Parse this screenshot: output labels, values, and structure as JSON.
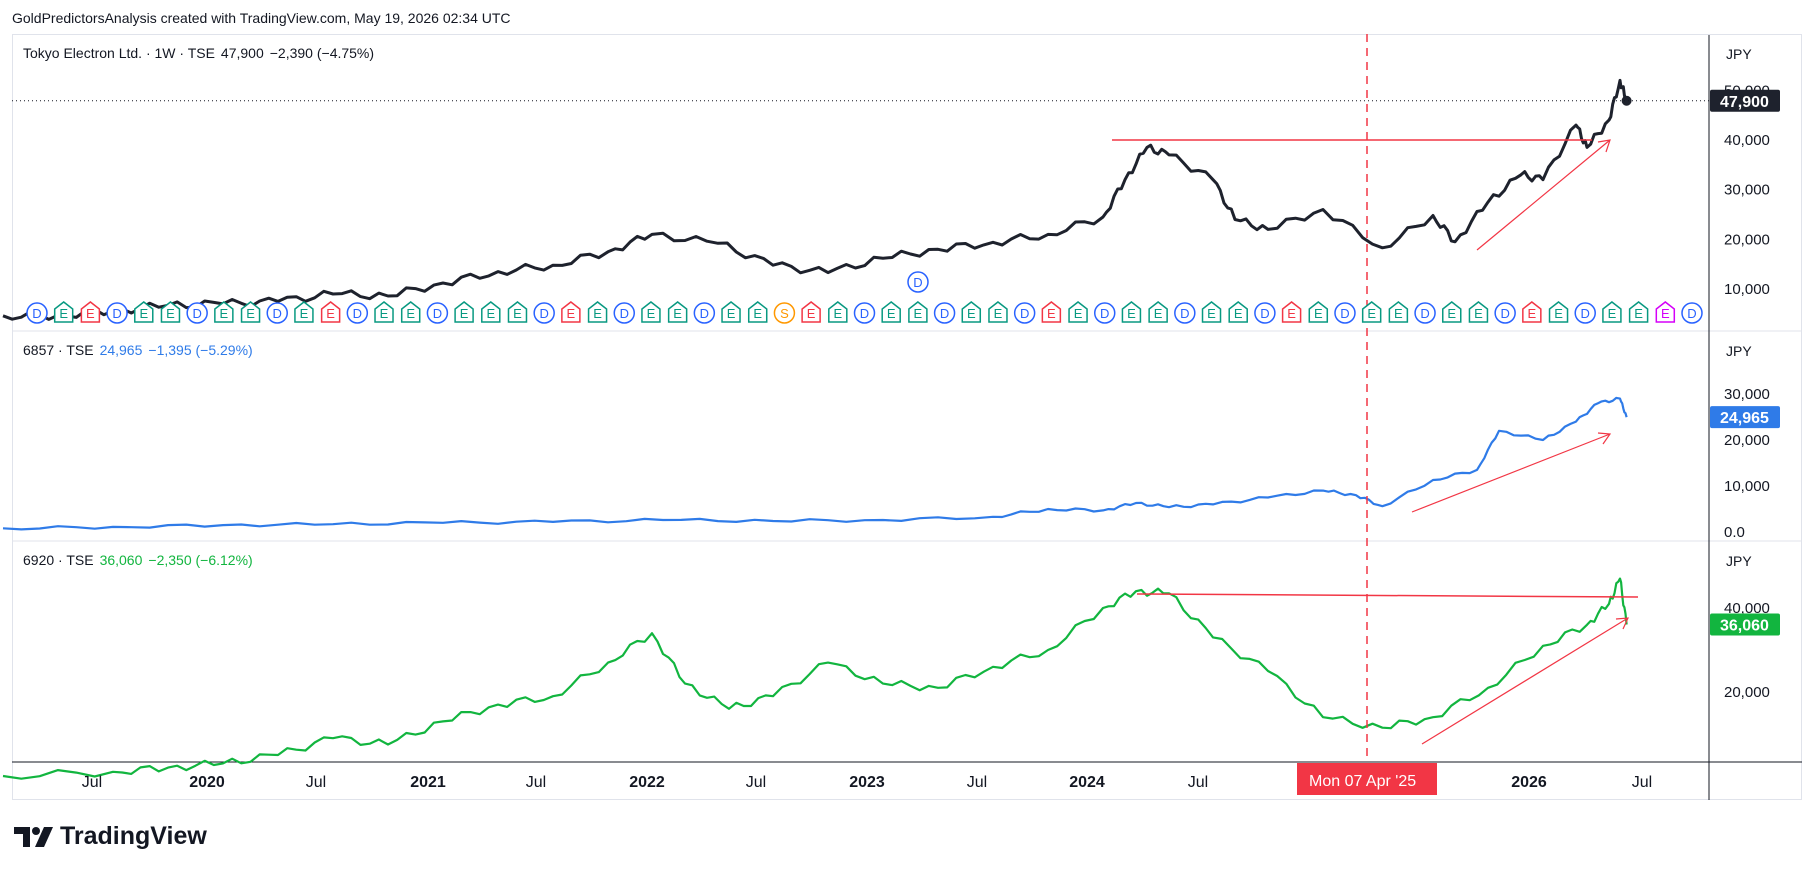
{
  "attribution": "GoldPredictorsAnalysis created with TradingView.com, May 19, 2026 02:34 UTC",
  "brand": {
    "name": "TradingView"
  },
  "colors": {
    "pane1": "#1e222d",
    "pane2": "#2f7be8",
    "pane3": "#12b53f",
    "annotation": "#f23645",
    "marker_E_red": "#f23645",
    "marker_E_green": "#089981",
    "marker_D": "#2962ff",
    "marker_S": "#ff9800",
    "marker_E_purple": "#d500f9"
  },
  "panes": [
    {
      "symbol": "Tokyo Electron Ltd. · 1W · TSE",
      "last": "47,900",
      "change": "−2,390 (−4.75%)",
      "currency": "JPY",
      "axis_ticks": [
        "50,000",
        "40,000",
        "30,000",
        "20,000",
        "10,000"
      ],
      "current_label": "47,900"
    },
    {
      "symbol": "6857 · TSE",
      "last": "24,965",
      "change": "−1,395 (−5.29%)",
      "currency": "JPY",
      "axis_ticks": [
        "30,000",
        "20,000",
        "10,000",
        "0.0"
      ],
      "current_label": "24,965"
    },
    {
      "symbol": "6920 · TSE",
      "last": "36,060",
      "change": "−2,350 (−6.12%)",
      "currency": "JPY",
      "axis_ticks": [
        "40,000",
        "20,000"
      ],
      "current_label": "36,060"
    }
  ],
  "x_axis": {
    "ticks": [
      "Jul",
      "2020",
      "Jul",
      "2021",
      "Jul",
      "2022",
      "Jul",
      "2023",
      "Jul",
      "2024",
      "Jul",
      "2026",
      "Jul"
    ],
    "crosshair_label": "Mon 07 Apr '25"
  },
  "chart_data": [
    {
      "type": "line",
      "title": "Tokyo Electron Ltd. · 1W · TSE",
      "ylim": [
        0,
        55000
      ],
      "x": [
        2019.0,
        2019.25,
        2019.5,
        2019.75,
        2020.0,
        2020.25,
        2020.5,
        2020.75,
        2021.0,
        2021.25,
        2021.5,
        2021.75,
        2021.95,
        2022.25,
        2022.5,
        2022.75,
        2023.0,
        2023.25,
        2023.5,
        2023.75,
        2024.0,
        2024.1,
        2024.2,
        2024.3,
        2024.5,
        2024.6,
        2024.75,
        2025.0,
        2025.27,
        2025.5,
        2025.6,
        2025.75,
        2025.9,
        2026.0,
        2026.15,
        2026.2,
        2026.3,
        2026.35,
        2026.38
      ],
      "values": [
        4600,
        4700,
        5600,
        6700,
        7000,
        7500,
        9000,
        8600,
        11200,
        13500,
        14800,
        17500,
        21000,
        19200,
        14800,
        13300,
        16200,
        18000,
        19400,
        21000,
        24500,
        32000,
        38500,
        37000,
        32000,
        24000,
        22000,
        26000,
        18300,
        24800,
        19500,
        27500,
        33000,
        32000,
        43000,
        38500,
        44000,
        52000,
        47900
      ],
      "reference_level": 40000,
      "markers": [
        "D",
        "E",
        "E",
        "D",
        "E",
        "E",
        "D",
        "E",
        "E",
        "D",
        "E",
        "E",
        "D",
        "E",
        "E",
        "D",
        "E",
        "E",
        "E",
        "D",
        "E",
        "E",
        "D",
        "E",
        "E",
        "D",
        "E",
        "E",
        "S",
        "E",
        "E",
        "D",
        "E",
        "E",
        "D",
        "E",
        "E",
        "D",
        "E",
        "E",
        "D",
        "E",
        "E",
        "D",
        "E",
        "E",
        "D",
        "E",
        "E",
        "D",
        "E",
        "E",
        "D",
        "E",
        "E",
        "D",
        "E",
        "E",
        "D",
        "E",
        "E",
        "E",
        "D"
      ]
    },
    {
      "type": "line",
      "title": "6857 · TSE",
      "ylim": [
        0,
        32000
      ],
      "x": [
        2019.0,
        2019.5,
        2020.0,
        2020.5,
        2021.0,
        2021.5,
        2022.0,
        2022.5,
        2023.0,
        2023.5,
        2023.75,
        2024.0,
        2024.15,
        2024.3,
        2024.5,
        2024.75,
        2025.0,
        2025.15,
        2025.27,
        2025.5,
        2025.7,
        2025.8,
        2026.0,
        2026.15,
        2026.25,
        2026.35,
        2026.38
      ],
      "values": [
        800,
        1100,
        1500,
        1700,
        2000,
        2200,
        2600,
        2400,
        2600,
        3300,
        5000,
        4700,
        6300,
        5400,
        6000,
        7500,
        9000,
        8000,
        5600,
        11300,
        13500,
        22000,
        20000,
        24000,
        28000,
        29000,
        24965
      ]
    },
    {
      "type": "line",
      "title": "6920 · TSE",
      "ylim": [
        0,
        48000
      ],
      "x": [
        2019.0,
        2019.5,
        2019.75,
        2020.0,
        2020.25,
        2020.5,
        2020.75,
        2021.0,
        2021.25,
        2021.5,
        2021.75,
        2021.95,
        2022.1,
        2022.3,
        2022.5,
        2022.75,
        2023.0,
        2023.25,
        2023.5,
        2023.75,
        2024.0,
        2024.15,
        2024.3,
        2024.5,
        2024.75,
        2025.0,
        2025.27,
        2025.5,
        2025.75,
        2026.0,
        2026.2,
        2026.3,
        2026.35,
        2026.38
      ],
      "values": [
        0,
        1000,
        2000,
        3000,
        5000,
        9000,
        7500,
        13000,
        17000,
        19000,
        27000,
        34000,
        22000,
        16000,
        19000,
        27000,
        22000,
        21000,
        26000,
        30000,
        40000,
        44000,
        43500,
        33000,
        25000,
        14000,
        11500,
        14000,
        21000,
        31000,
        36000,
        41000,
        47000,
        36060
      ],
      "reference_level": 47000
    }
  ]
}
